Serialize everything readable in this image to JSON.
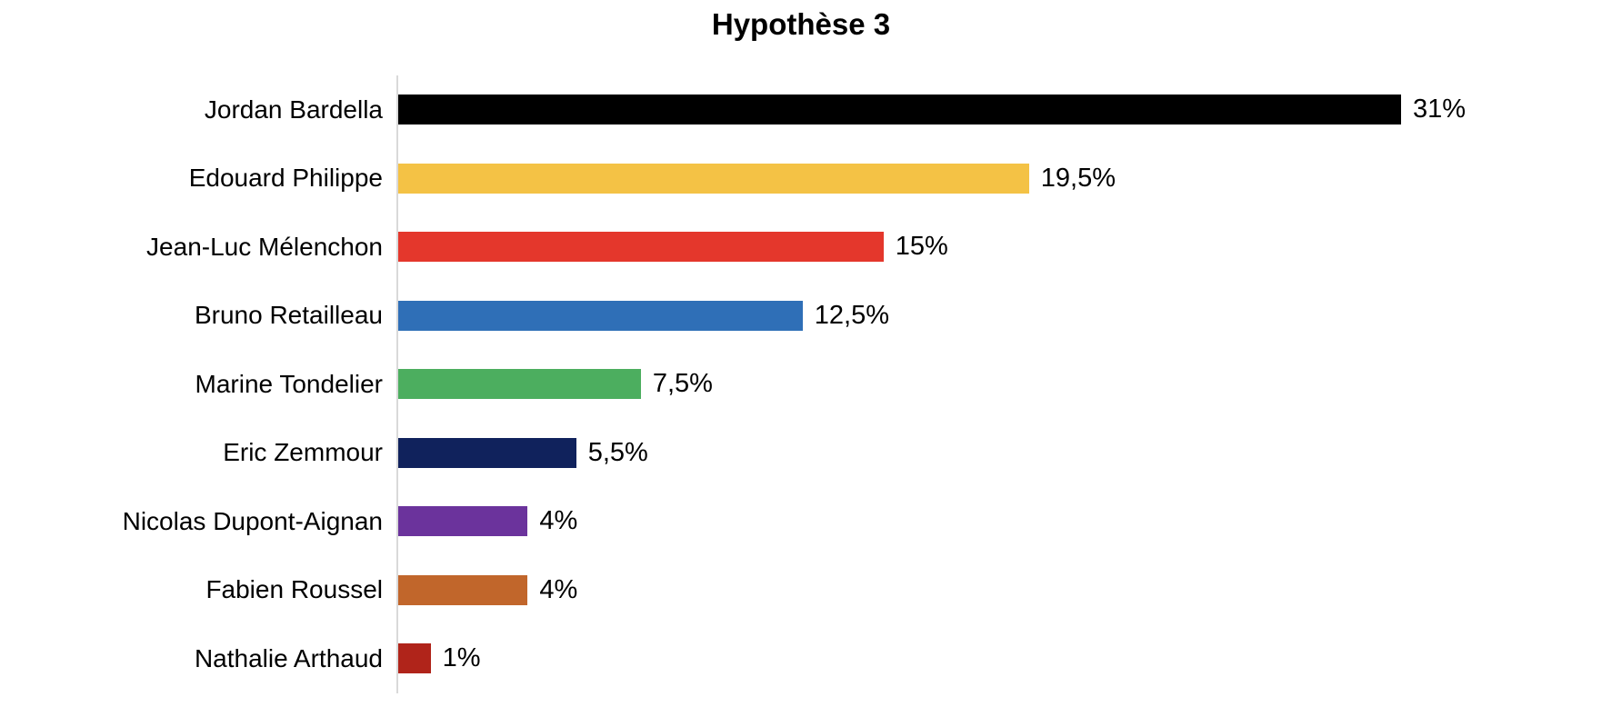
{
  "chart_data": {
    "type": "bar",
    "orientation": "horizontal",
    "title": "Hypothèse 3",
    "unit": "%",
    "decimal_separator": ",",
    "grid": false,
    "legend": "none",
    "xlim": [
      0,
      31
    ],
    "axis_line_color": "#d9d9d9",
    "categories": [
      "Jordan Bardella",
      "Edouard Philippe",
      "Jean-Luc Mélenchon",
      "Bruno Retailleau",
      "Marine Tondelier",
      "Eric Zemmour",
      "Nicolas Dupont-Aignan",
      "Fabien Roussel",
      "Nathalie Arthaud"
    ],
    "values": [
      31,
      19.5,
      15,
      12.5,
      7.5,
      5.5,
      4,
      4,
      1
    ],
    "value_labels": [
      "31%",
      "19,5%",
      "15%",
      "12,5%",
      "7,5%",
      "5,5%",
      "4%",
      "4%",
      "1%"
    ],
    "bar_colors": [
      "#000000",
      "#f4c245",
      "#e4372c",
      "#2f6fb7",
      "#4cae5f",
      "#10225c",
      "#6b339c",
      "#c1662b",
      "#b0241a"
    ]
  }
}
